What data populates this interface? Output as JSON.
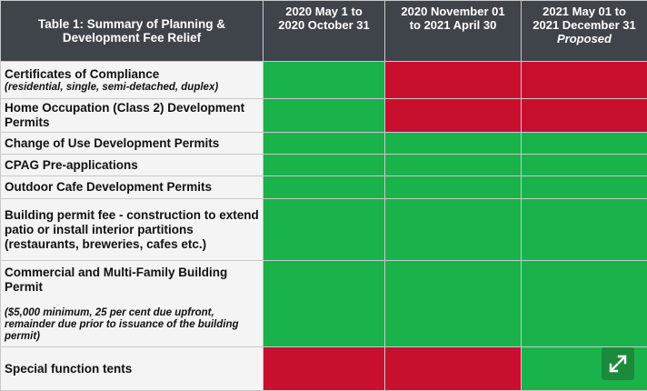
{
  "table": {
    "title": "Table 1: Summary of Planning & Development Fee Relief",
    "columns": [
      {
        "line1": "2020 May 1 to",
        "line2": "2020 October 31",
        "note": ""
      },
      {
        "line1": "2020 November 01",
        "line2": "to 2021 April 30",
        "note": ""
      },
      {
        "line1": "2021 May 01 to",
        "line2": "2021 December 31",
        "note": "Proposed"
      }
    ],
    "rows": [
      {
        "label": "Certificates of Compliance",
        "sub": "(residential, single, semi-detached, duplex)",
        "note": "",
        "statuses": [
          "green",
          "red",
          "red"
        ]
      },
      {
        "label": "Home Occupation (Class 2) Development Permits",
        "sub": "",
        "note": "",
        "statuses": [
          "green",
          "red",
          "red"
        ]
      },
      {
        "label": "Change of Use Development Permits",
        "sub": "",
        "note": "",
        "statuses": [
          "green",
          "green",
          "green"
        ]
      },
      {
        "label": "CPAG Pre-applications",
        "sub": "",
        "note": "",
        "statuses": [
          "green",
          "green",
          "green"
        ]
      },
      {
        "label": "Outdoor Cafe Development Permits",
        "sub": "",
        "note": "",
        "statuses": [
          "green",
          "green",
          "green"
        ]
      },
      {
        "label": "Building permit fee - construction to extend patio or install interior partitions (restaurants, breweries, cafes etc.)",
        "sub": "",
        "note": "",
        "statuses": [
          "green",
          "green",
          "green"
        ]
      },
      {
        "label": "Commercial and Multi-Family Building Permit",
        "sub": "",
        "note": "($5,000 minimum, 25 per cent due upfront, remainder due prior to issuance of the building permit)",
        "statuses": [
          "green",
          "green",
          "green"
        ]
      },
      {
        "label": "Special function tents",
        "sub": "",
        "note": "",
        "statuses": [
          "red",
          "red",
          "green"
        ]
      }
    ]
  },
  "colors": {
    "green": "#19b24b",
    "red": "#c8102e",
    "header_bg": "#3f434a",
    "expand_button": "#1b8a3b"
  },
  "expand_button": {
    "icon": "expand-icon"
  }
}
